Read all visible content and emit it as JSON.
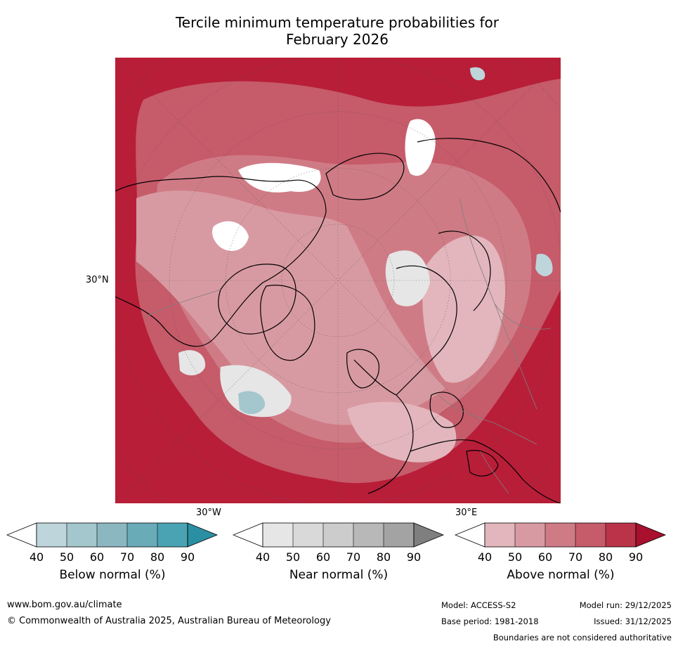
{
  "title_line1": "Tercile minimum temperature probabilities for",
  "title_line2": "February 2026",
  "map": {
    "lat_labels": [
      "30°N"
    ],
    "lon_labels": [
      "30°W",
      "30°E"
    ]
  },
  "colorbars": [
    {
      "title": "Below normal (%)",
      "ticks": [
        "40",
        "50",
        "60",
        "70",
        "80",
        "90"
      ],
      "colors": [
        "#ffffff",
        "#bdd5db",
        "#a4c6cd",
        "#8bb7c0",
        "#6aabb8",
        "#4aa3b3",
        "#2b8fa3"
      ]
    },
    {
      "title": "Near normal (%)",
      "ticks": [
        "40",
        "50",
        "60",
        "70",
        "80",
        "90"
      ],
      "colors": [
        "#ffffff",
        "#e6e6e6",
        "#d9d9d9",
        "#cccccc",
        "#b8b8b8",
        "#a3a3a3",
        "#7f7f7f"
      ]
    },
    {
      "title": "Above normal (%)",
      "ticks": [
        "40",
        "50",
        "60",
        "70",
        "80",
        "90"
      ],
      "colors": [
        "#ffffff",
        "#e2b6bc",
        "#d89aa2",
        "#cf7b86",
        "#c65b6a",
        "#ba3349",
        "#a8102e"
      ]
    }
  ],
  "footer": {
    "website": "www.bom.gov.au/climate",
    "copyright": "© Commonwealth of Australia 2025, Australian Bureau of Meteorology",
    "model": "Model: ACCESS-S2",
    "base_period": "Base period: 1981-2018",
    "model_run": "Model run: 29/12/2025",
    "issued": "Issued: 31/12/2025",
    "disclaimer": "Boundaries are not considered authoritative"
  }
}
